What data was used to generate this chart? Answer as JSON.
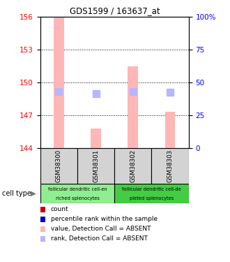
{
  "title": "GDS1599 / 163637_at",
  "samples": [
    "GSM38300",
    "GSM38301",
    "GSM38302",
    "GSM38303"
  ],
  "ylim": [
    144,
    156
  ],
  "yticks": [
    144,
    147,
    150,
    153,
    156
  ],
  "right_ytick_vals": [
    0,
    25,
    50,
    75,
    100
  ],
  "right_ytick_labels": [
    "0",
    "25",
    "50",
    "75",
    "100%"
  ],
  "bar_values": [
    156.0,
    145.8,
    151.5,
    147.3
  ],
  "rank_values": [
    149.15,
    149.0,
    149.2,
    149.1
  ],
  "bar_color_absent": "#ffb6b6",
  "rank_color_absent": "#b6b6ff",
  "bar_width": 0.28,
  "rank_marker_size": 55,
  "group1_color": "#90ee90",
  "group2_color": "#44cc44",
  "cell_type_label": "cell type",
  "legend_items": [
    {
      "color": "#cc0000",
      "label": "count"
    },
    {
      "color": "#0000cc",
      "label": "percentile rank within the sample"
    },
    {
      "color": "#ffb6b6",
      "label": "value, Detection Call = ABSENT"
    },
    {
      "color": "#b6b6ff",
      "label": "rank, Detection Call = ABSENT"
    }
  ]
}
